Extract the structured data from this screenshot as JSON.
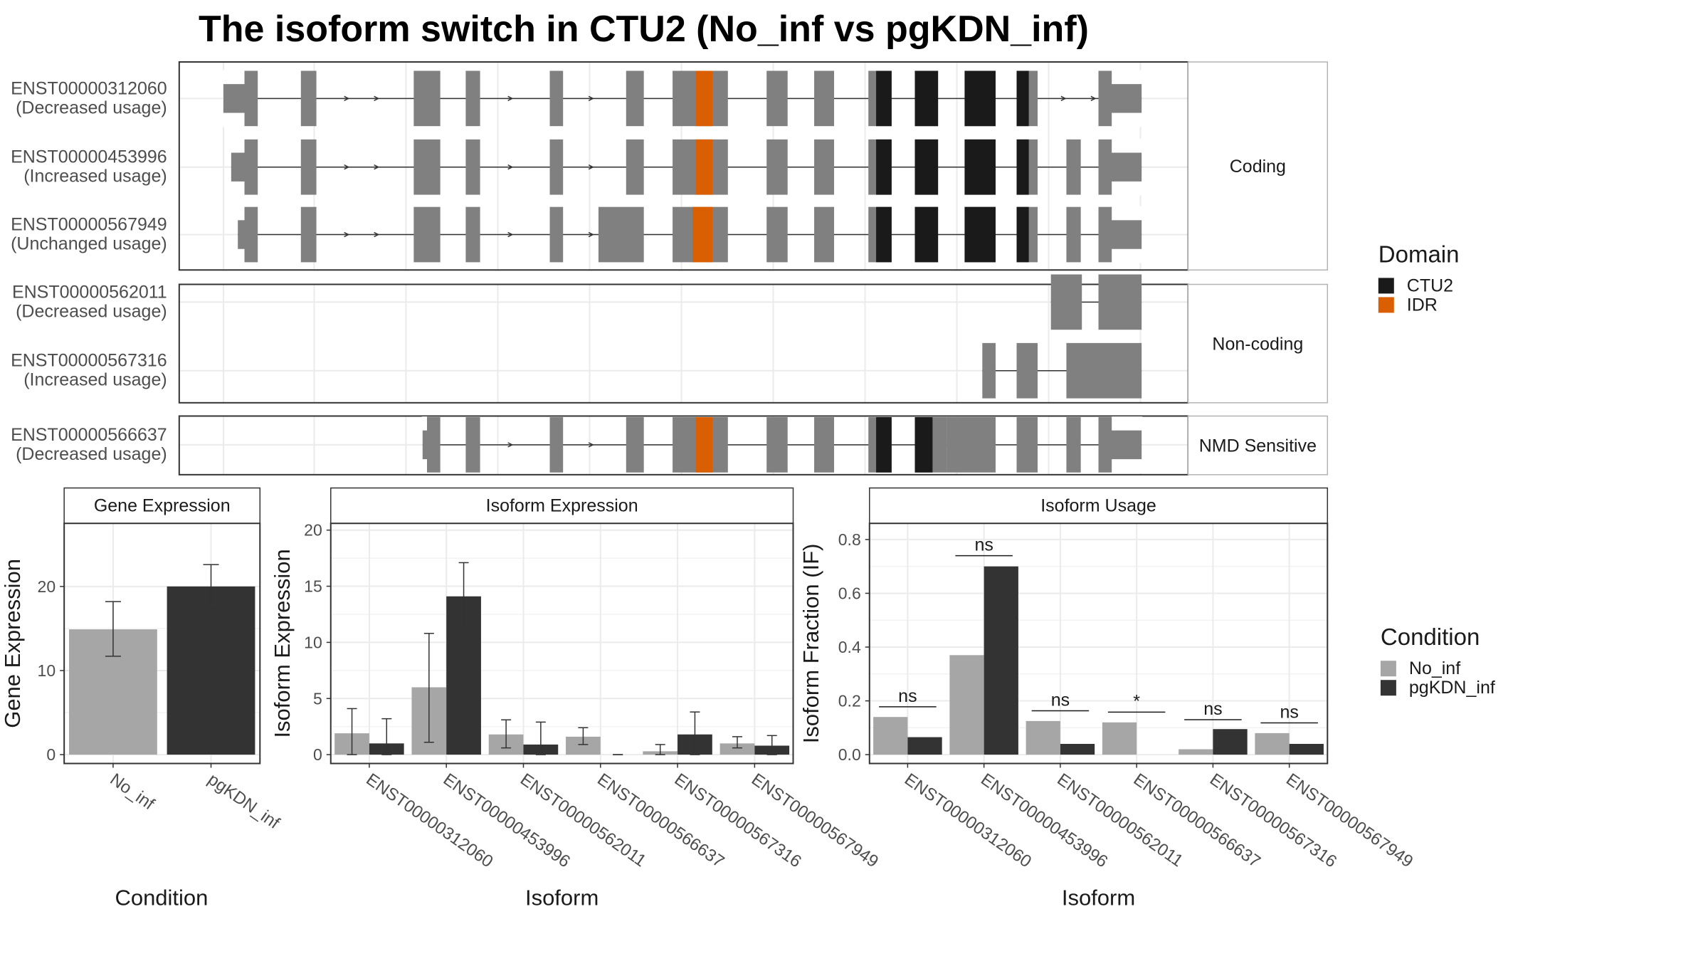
{
  "title": "The isoform switch in CTU2 (No_inf vs pgKDN_inf)",
  "colors": {
    "no_inf": "#a6a6a6",
    "pgkdn_inf": "#333333",
    "exon": "#808080",
    "ctu2_domain": "#1a1a1a",
    "idr_domain": "#d95f02",
    "grid": "#ebebeb",
    "panel_border": "#333333",
    "strip_bg": "#ffffff"
  },
  "structure": {
    "groups": [
      {
        "label": "Coding",
        "transcripts": [
          {
            "id": "ENST00000312060",
            "usage": "(Decreased usage)",
            "utr_start": 202,
            "utr_end": 1032,
            "exons": [
              [
                202,
                233
              ],
              [
                272,
                286
              ],
              [
                374,
                398
              ],
              [
                421,
                434
              ],
              [
                497,
                509
              ],
              [
                566,
                582
              ],
              [
                608,
                658
              ],
              [
                693,
                712
              ],
              [
                736,
                754
              ],
              [
                785,
                806
              ],
              [
                827,
                848
              ],
              [
                872,
                900
              ],
              [
                919,
                938
              ],
              [
                993,
                1032
              ]
            ],
            "ctu2": [
              [
                792,
                806
              ],
              [
                827,
                848
              ],
              [
                872,
                900
              ],
              [
                919,
                930
              ]
            ],
            "idr": [
              [
                629,
                644
              ]
            ],
            "arrows": [
              315,
              342,
              463,
              536,
              963,
              990
            ]
          },
          {
            "id": "ENST00000453996",
            "usage": "(Increased usage)",
            "utr_start": 209,
            "utr_end": 1032,
            "exons": [
              [
                209,
                233
              ],
              [
                272,
                286
              ],
              [
                374,
                398
              ],
              [
                421,
                434
              ],
              [
                497,
                509
              ],
              [
                566,
                582
              ],
              [
                608,
                658
              ],
              [
                693,
                712
              ],
              [
                736,
                754
              ],
              [
                785,
                806
              ],
              [
                827,
                848
              ],
              [
                872,
                900
              ],
              [
                919,
                938
              ],
              [
                964,
                977
              ],
              [
                993,
                1032
              ]
            ],
            "ctu2": [
              [
                792,
                806
              ],
              [
                827,
                848
              ],
              [
                872,
                900
              ],
              [
                919,
                930
              ]
            ],
            "idr": [
              [
                629,
                644
              ]
            ],
            "arrows": [
              315,
              342,
              463,
              536
            ]
          },
          {
            "id": "ENST00000567949",
            "usage": "(Unchanged usage)",
            "utr_start": 215,
            "utr_end": 1032,
            "exons": [
              [
                215,
                233
              ],
              [
                272,
                286
              ],
              [
                374,
                398
              ],
              [
                421,
                434
              ],
              [
                497,
                509
              ],
              [
                541,
                582
              ],
              [
                608,
                658
              ],
              [
                693,
                712
              ],
              [
                736,
                754
              ],
              [
                785,
                806
              ],
              [
                827,
                848
              ],
              [
                872,
                900
              ],
              [
                919,
                938
              ],
              [
                964,
                977
              ],
              [
                993,
                1032
              ]
            ],
            "ctu2": [
              [
                792,
                806
              ],
              [
                827,
                848
              ],
              [
                872,
                900
              ],
              [
                919,
                930
              ]
            ],
            "idr": [
              [
                626,
                644
              ]
            ],
            "arrows": [
              315,
              342,
              463,
              536
            ]
          }
        ]
      },
      {
        "label": "Non-coding",
        "transcripts": [
          {
            "id": "ENST00000562011",
            "usage": "(Decreased usage)",
            "utr_start": 950,
            "utr_end": 1032,
            "exons": [
              [
                950,
                978
              ],
              [
                993,
                1032
              ]
            ],
            "ctu2": [],
            "idr": [],
            "arrows": []
          },
          {
            "id": "ENST00000567316",
            "usage": "(Increased usage)",
            "utr_start": 888,
            "utr_end": 1032,
            "exons": [
              [
                888,
                900
              ],
              [
                919,
                938
              ],
              [
                964,
                1032
              ]
            ],
            "ctu2": [],
            "idr": [],
            "arrows": []
          }
        ]
      },
      {
        "label": "NMD Sensitive",
        "transcripts": [
          {
            "id": "ENST00000566637",
            "usage": "(Decreased usage)",
            "utr_start": 382,
            "utr_end": 1032,
            "exons": [
              [
                382,
                398
              ],
              [
                421,
                434
              ],
              [
                497,
                509
              ],
              [
                566,
                582
              ],
              [
                608,
                658
              ],
              [
                693,
                712
              ],
              [
                736,
                754
              ],
              [
                785,
                806
              ],
              [
                827,
                856
              ],
              [
                856,
                900
              ],
              [
                919,
                938
              ],
              [
                964,
                977
              ],
              [
                993,
                1032
              ]
            ],
            "ctu2": [
              [
                792,
                806
              ],
              [
                827,
                843
              ]
            ],
            "idr": [
              [
                629,
                644
              ]
            ],
            "arrows": [
              463,
              536
            ]
          }
        ]
      }
    ]
  },
  "domain_legend": {
    "title": "Domain",
    "items": [
      {
        "label": "CTU2",
        "color": "#1a1a1a"
      },
      {
        "label": "IDR",
        "color": "#d95f02"
      }
    ]
  },
  "condition_legend": {
    "title": "Condition",
    "items": [
      {
        "label": "No_inf",
        "color": "#a6a6a6"
      },
      {
        "label": "pgKDN_inf",
        "color": "#333333"
      }
    ]
  },
  "chart_data": [
    {
      "type": "bar",
      "title": "Gene Expression",
      "xlabel": "Condition",
      "ylabel": "Gene Expression",
      "categories": [
        "No_inf",
        "pgKDN_inf"
      ],
      "values": [
        14.9,
        20.0
      ],
      "error_low": [
        11.7,
        17.4
      ],
      "error_high": [
        18.2,
        22.6
      ],
      "ylim": [
        0,
        27.5
      ],
      "yticks": [
        0,
        10,
        20
      ]
    },
    {
      "type": "bar",
      "title": "Isoform Expression",
      "xlabel": "Isoform",
      "ylabel": "Isoform Expression",
      "categories": [
        "ENST00000312060",
        "ENST00000453996",
        "ENST00000562011",
        "ENST00000566637",
        "ENST00000567316",
        "ENST00000567949"
      ],
      "series": [
        {
          "name": "No_inf",
          "values": [
            1.9,
            6.0,
            1.8,
            1.6,
            0.3,
            1.0
          ],
          "error_low": [
            0.0,
            1.1,
            0.6,
            0.9,
            0.0,
            0.6
          ],
          "error_high": [
            4.1,
            10.8,
            3.1,
            2.4,
            0.9,
            1.6
          ]
        },
        {
          "name": "pgKDN_inf",
          "values": [
            1.0,
            14.1,
            0.9,
            0.0,
            1.8,
            0.8
          ],
          "error_low": [
            0.0,
            11.2,
            0.0,
            0.0,
            0.0,
            0.0
          ],
          "error_high": [
            3.2,
            17.1,
            2.9,
            0.0,
            3.8,
            1.7
          ]
        }
      ],
      "ylim": [
        0,
        20.6
      ],
      "yticks": [
        0,
        5,
        10,
        15,
        20
      ]
    },
    {
      "type": "bar",
      "title": "Isoform Usage",
      "xlabel": "Isoform",
      "ylabel": "Isoform Fraction (IF)",
      "categories": [
        "ENST00000312060",
        "ENST00000453996",
        "ENST00000562011",
        "ENST00000566637",
        "ENST00000567316",
        "ENST00000567949"
      ],
      "series": [
        {
          "name": "No_inf",
          "values": [
            0.14,
            0.37,
            0.125,
            0.12,
            0.02,
            0.08
          ]
        },
        {
          "name": "pgKDN_inf",
          "values": [
            0.065,
            0.7,
            0.04,
            0.0,
            0.095,
            0.04
          ]
        }
      ],
      "significance": [
        "ns",
        "ns",
        "ns",
        "*",
        "ns",
        "ns"
      ],
      "sig_height": [
        0.178,
        0.74,
        0.163,
        0.158,
        0.13,
        0.118
      ],
      "ylim": [
        0,
        0.86
      ],
      "yticks": [
        0.0,
        0.2,
        0.4,
        0.6,
        0.8
      ],
      "ytick_labels": [
        "0.0",
        "0.2",
        "0.4",
        "0.6",
        "0.8"
      ]
    }
  ]
}
